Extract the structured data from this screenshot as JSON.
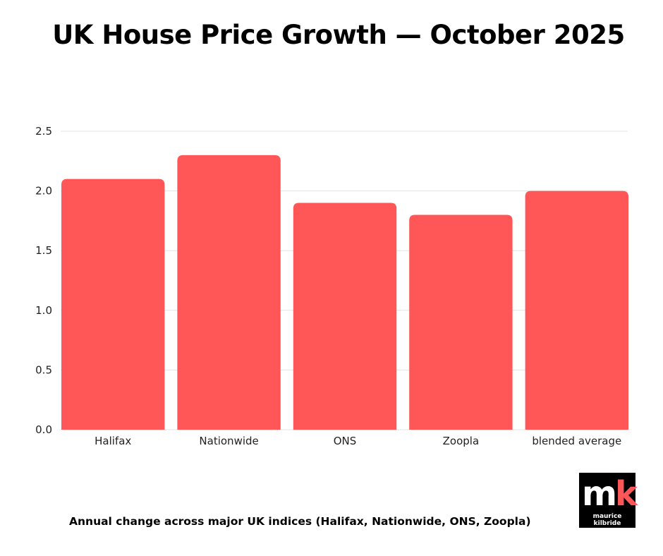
{
  "chart_data": {
    "type": "bar",
    "title": "UK House Price Growth — October 2025",
    "subtitle": "Annual change across major UK indices (Halifax, Nationwide, ONS, Zoopla)",
    "categories": [
      "Halifax",
      "Nationwide",
      "ONS",
      "Zoopla",
      "blended average"
    ],
    "values": [
      2.1,
      2.3,
      1.9,
      1.8,
      2.0
    ],
    "xlabel": "",
    "ylabel": "",
    "ylim": [
      0,
      2.5
    ],
    "yticks": [
      "0.0",
      "0.5",
      "1.0",
      "1.5",
      "2.0",
      "2.5"
    ],
    "grid": true,
    "bar_color": "#ff5757"
  },
  "logo": {
    "mark": "mk",
    "name": "maurice kilbride"
  }
}
